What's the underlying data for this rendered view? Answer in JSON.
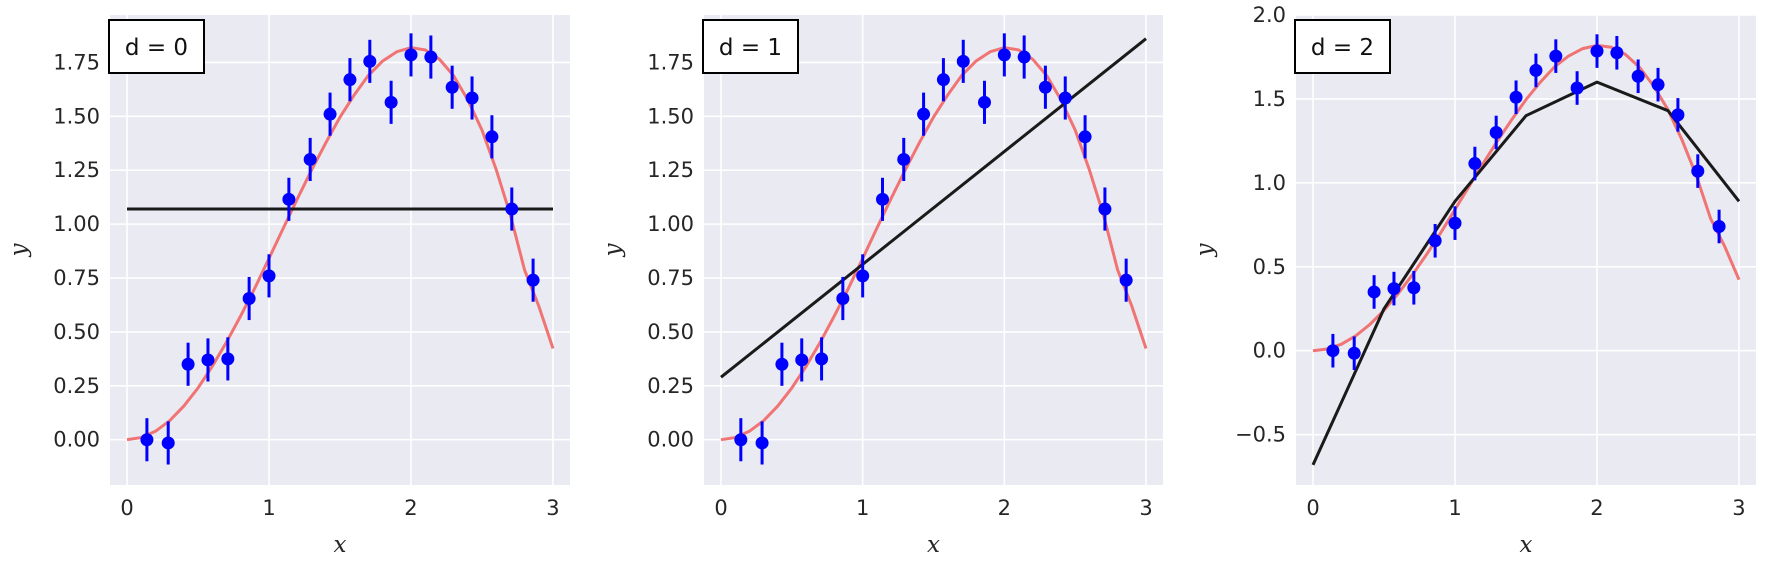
{
  "chart_data": [
    {
      "type": "line",
      "annotation": "d = 0",
      "xlabel": "x",
      "ylabel": "y",
      "xlim": [
        -0.12,
        3.12
      ],
      "ylim": [
        -0.21,
        1.97
      ],
      "xticks": [
        0,
        1,
        2,
        3
      ],
      "xtick_labels": [
        "0",
        "1",
        "2",
        "3"
      ],
      "yticks": [
        0.0,
        0.25,
        0.5,
        0.75,
        1.0,
        1.25,
        1.5,
        1.75
      ],
      "ytick_labels": [
        "0.00",
        "0.25",
        "0.50",
        "0.75",
        "1.00",
        "1.25",
        "1.50",
        "1.75"
      ],
      "grid": true,
      "fit_line": {
        "x": [
          0,
          3
        ],
        "y": [
          1.07,
          1.07
        ]
      }
    },
    {
      "type": "line",
      "annotation": "d = 1",
      "xlabel": "x",
      "ylabel": "y",
      "xlim": [
        -0.12,
        3.12
      ],
      "ylim": [
        -0.21,
        1.97
      ],
      "xticks": [
        0,
        1,
        2,
        3
      ],
      "xtick_labels": [
        "0",
        "1",
        "2",
        "3"
      ],
      "yticks": [
        0.0,
        0.25,
        0.5,
        0.75,
        1.0,
        1.25,
        1.5,
        1.75
      ],
      "ytick_labels": [
        "0.00",
        "0.25",
        "0.50",
        "0.75",
        "1.00",
        "1.25",
        "1.50",
        "1.75"
      ],
      "grid": true,
      "fit_line": {
        "x": [
          0,
          3
        ],
        "y": [
          0.29,
          1.86
        ]
      }
    },
    {
      "type": "line",
      "annotation": "d = 2",
      "xlabel": "x",
      "ylabel": "y",
      "xlim": [
        -0.12,
        3.12
      ],
      "ylim": [
        -0.8,
        2.0
      ],
      "xticks": [
        0,
        1,
        2,
        3
      ],
      "xtick_labels": [
        "0",
        "1",
        "2",
        "3"
      ],
      "yticks": [
        -0.5,
        0.0,
        0.5,
        1.0,
        1.5,
        2.0
      ],
      "ytick_labels": [
        "−0.5",
        "0.0",
        "0.5",
        "1.0",
        "1.5",
        "2.0"
      ],
      "grid": true,
      "fit_line": {
        "x": [
          0,
          0.5,
          1,
          1.5,
          2,
          2.5,
          3
        ],
        "y": [
          -0.68,
          0.25,
          0.89,
          1.4,
          1.6,
          1.43,
          0.89
        ]
      }
    }
  ],
  "shared_data": {
    "true_curve": {
      "x": [
        0,
        0.1,
        0.2,
        0.3,
        0.4,
        0.5,
        0.6,
        0.7,
        0.8,
        0.9,
        1.0,
        1.1,
        1.2,
        1.3,
        1.4,
        1.5,
        1.6,
        1.7,
        1.8,
        1.9,
        2.0,
        2.1,
        2.2,
        2.3,
        2.4,
        2.5,
        2.6,
        2.7,
        2.8,
        2.9,
        3.0
      ],
      "y": [
        0.0,
        0.01,
        0.039,
        0.088,
        0.156,
        0.24,
        0.34,
        0.452,
        0.574,
        0.703,
        0.841,
        0.98,
        1.118,
        1.251,
        1.377,
        1.496,
        1.599,
        1.69,
        1.756,
        1.8,
        1.819,
        1.808,
        1.765,
        1.688,
        1.576,
        1.436,
        1.253,
        1.042,
        0.787,
        0.62,
        0.423
      ]
    },
    "data_points": {
      "x": [
        0.14,
        0.29,
        0.43,
        0.57,
        0.71,
        0.86,
        1.0,
        1.14,
        1.29,
        1.43,
        1.57,
        1.71,
        1.86,
        2.0,
        2.14,
        2.29,
        2.43,
        2.57,
        2.71,
        2.86
      ],
      "y": [
        0.0,
        -0.015,
        0.35,
        0.37,
        0.375,
        0.655,
        0.76,
        1.115,
        1.3,
        1.51,
        1.67,
        1.755,
        1.565,
        1.785,
        1.775,
        1.635,
        1.585,
        1.405,
        1.07,
        0.74
      ],
      "error": [
        0.1,
        0.1,
        0.1,
        0.1,
        0.1,
        0.1,
        0.1,
        0.1,
        0.1,
        0.1,
        0.1,
        0.1,
        0.1,
        0.1,
        0.1,
        0.1,
        0.1,
        0.1,
        0.1,
        0.1
      ]
    }
  },
  "colors": {
    "plot_background": "#eaeaf2",
    "grid": "#ffffff",
    "true_curve": "#f07474",
    "points": "#0000ff",
    "fit_line": "#1a1a1a",
    "legend_border": "#000000"
  }
}
